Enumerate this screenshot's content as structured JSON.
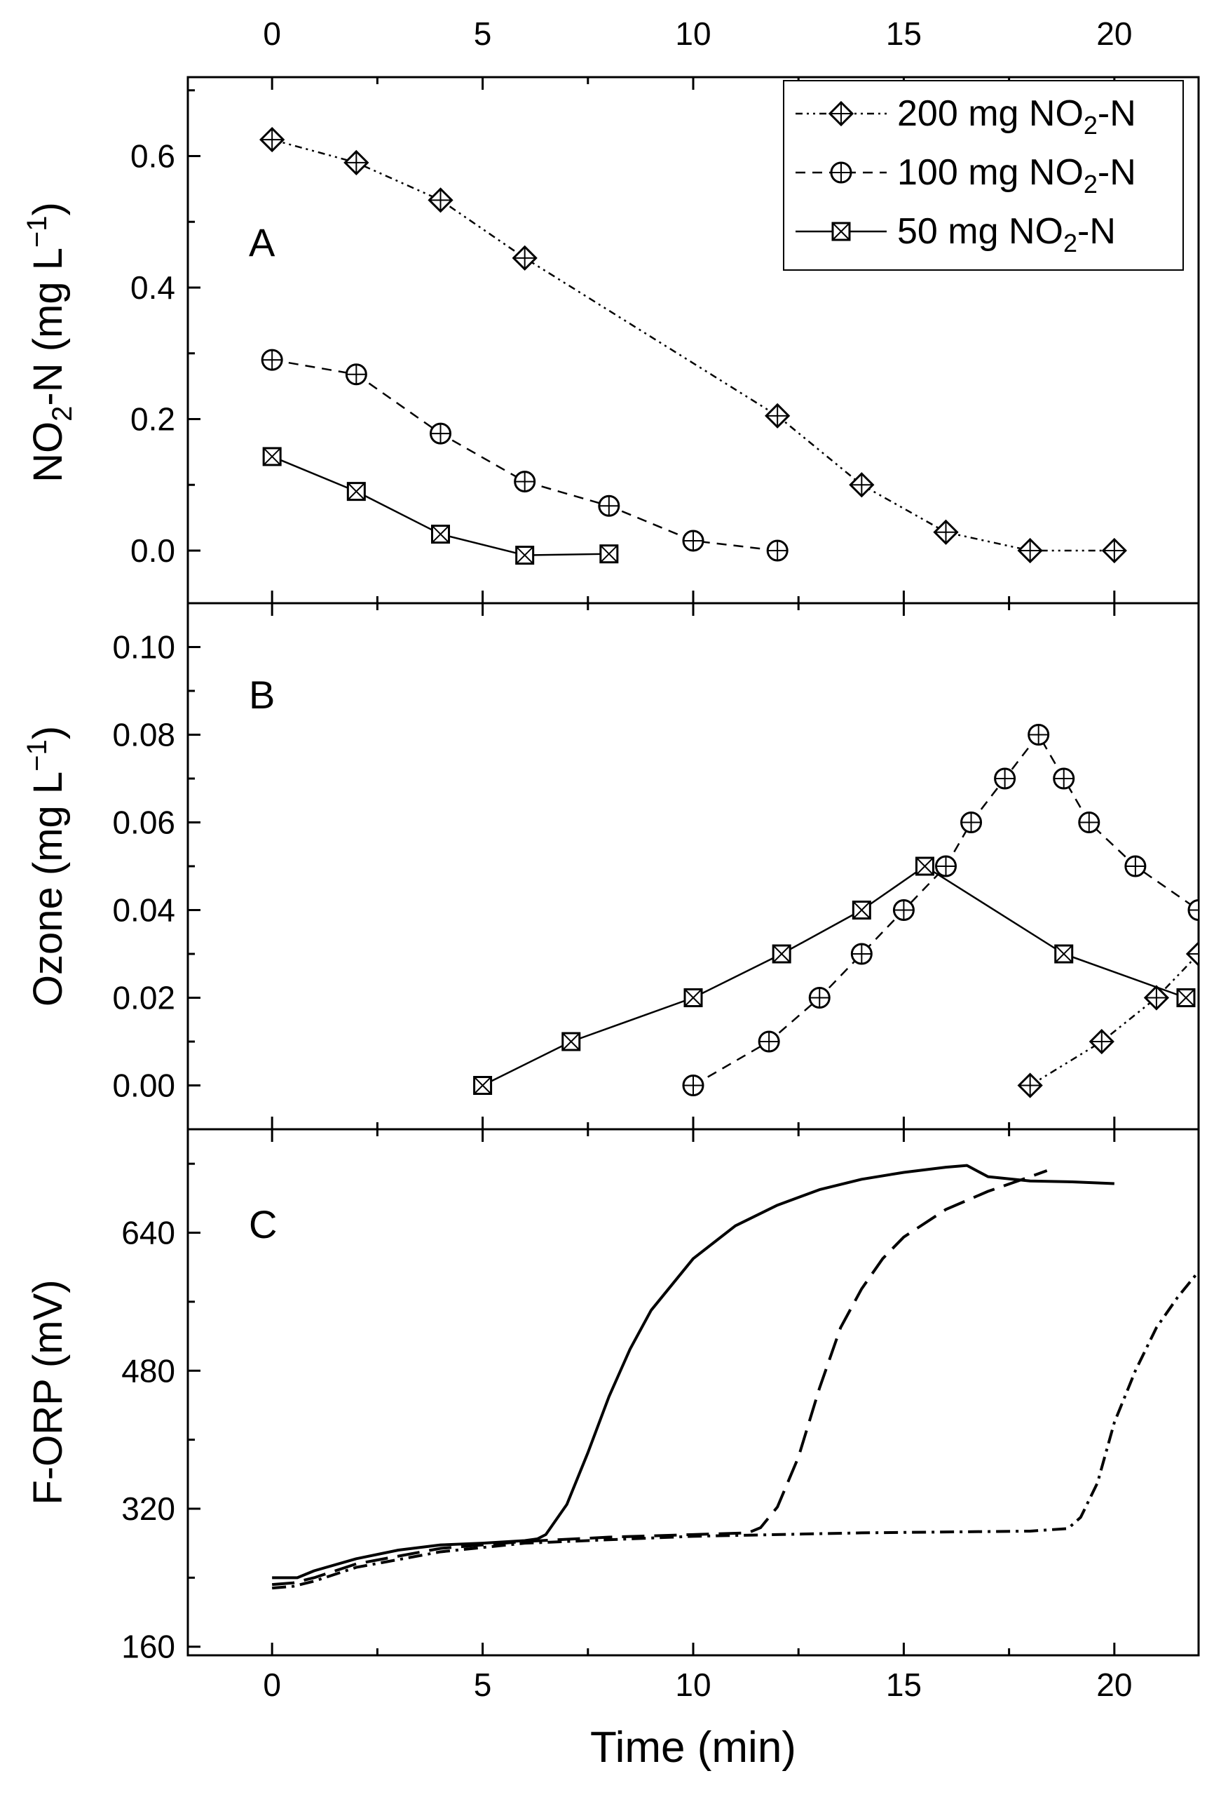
{
  "figure": {
    "xlabel": "Time (min)",
    "legend": [
      {
        "label": "200 mg NO₂-N",
        "text_main": "200 mg NO",
        "sub": "2",
        "text_tail": "-N",
        "marker": "diamond",
        "dash": "dashdotdot"
      },
      {
        "label": "100 mg NO₂-N",
        "text_main": "100 mg NO",
        "sub": "2",
        "text_tail": "-N",
        "marker": "oplus",
        "dash": "dashed"
      },
      {
        "label": "50 mg NO₂-N",
        "text_main": "50 mg NO",
        "sub": "2",
        "text_tail": "-N",
        "marker": "boxx",
        "dash": "solid"
      }
    ],
    "xticks": [
      0,
      5,
      10,
      15,
      20
    ]
  },
  "chart_data": [
    {
      "type": "line",
      "panel_label": "A",
      "ylabel": "NO₂-N (mg L⁻¹)",
      "ylabel_parts": {
        "a": "NO",
        "sub": "2",
        "b": "-N (mg L",
        "sup": "−1",
        "c": ")"
      },
      "xlim": [
        -2,
        22
      ],
      "ylim": [
        -0.08,
        0.72
      ],
      "yticks": [
        "0.0",
        "0.2",
        "0.4",
        "0.6"
      ],
      "ytick_values": [
        0,
        0.2,
        0.4,
        0.6
      ],
      "series": [
        {
          "name": "200 mg NO₂-N",
          "marker": "diamond",
          "dash": "dashdotdot",
          "x": [
            0,
            2,
            4,
            6,
            12,
            14,
            16,
            18,
            20
          ],
          "y": [
            0.625,
            0.59,
            0.533,
            0.445,
            0.205,
            0.1,
            0.028,
            0.0,
            0.0
          ]
        },
        {
          "name": "100 mg NO₂-N",
          "marker": "oplus",
          "dash": "dashed",
          "x": [
            0,
            2,
            4,
            6,
            8,
            10,
            12
          ],
          "y": [
            0.29,
            0.268,
            0.178,
            0.105,
            0.068,
            0.015,
            0.0
          ]
        },
        {
          "name": "50 mg NO₂-N",
          "marker": "boxx",
          "dash": "solid",
          "x": [
            0,
            2,
            4,
            6,
            8
          ],
          "y": [
            0.143,
            0.09,
            0.025,
            -0.007,
            -0.005
          ]
        }
      ]
    },
    {
      "type": "line",
      "panel_label": "B",
      "ylabel": "Ozone (mg L⁻¹)",
      "ylabel_parts": {
        "a": "Ozone (mg L",
        "sup": "−1",
        "c": ")"
      },
      "xlim": [
        -2,
        22
      ],
      "ylim": [
        -0.01,
        0.11
      ],
      "yticks": [
        "0.00",
        "0.02",
        "0.04",
        "0.06",
        "0.08",
        "0.10"
      ],
      "ytick_values": [
        0,
        0.02,
        0.04,
        0.06,
        0.08,
        0.1
      ],
      "series": [
        {
          "name": "200 mg NO₂-N",
          "marker": "diamond",
          "dash": "dashdotdot",
          "x": [
            18,
            19.7,
            21,
            22
          ],
          "y": [
            0.0,
            0.01,
            0.02,
            0.03
          ]
        },
        {
          "name": "100 mg NO₂-N",
          "marker": "oplus",
          "dash": "dashed",
          "x": [
            10,
            11.8,
            13,
            14,
            15,
            16,
            16.6,
            17.4,
            18.2,
            18.8,
            19.4,
            20.5,
            22
          ],
          "y": [
            0.0,
            0.01,
            0.02,
            0.03,
            0.04,
            0.05,
            0.06,
            0.07,
            0.08,
            0.07,
            0.06,
            0.05,
            0.04
          ]
        },
        {
          "name": "50 mg NO₂-N",
          "marker": "boxx",
          "dash": "solid",
          "x": [
            5,
            7.1,
            10,
            12.1,
            14,
            15.5,
            18.8,
            21.7
          ],
          "y": [
            0.0,
            0.01,
            0.02,
            0.03,
            0.04,
            0.05,
            0.03,
            0.02
          ]
        }
      ]
    },
    {
      "type": "line",
      "panel_label": "C",
      "ylabel": "F-ORP (mV)",
      "xlim": [
        -2,
        22
      ],
      "ylim": [
        150,
        760
      ],
      "yticks": [
        "160",
        "320",
        "480",
        "640"
      ],
      "ytick_values": [
        160,
        320,
        480,
        640
      ],
      "series": [
        {
          "name": "50 mg NO₂-N",
          "dash": "solid",
          "x": [
            0,
            0.6,
            1,
            2,
            3,
            4,
            5,
            6,
            6.3,
            6.5,
            7,
            7.5,
            8,
            8.5,
            9,
            10,
            11,
            12,
            13,
            14,
            15,
            16,
            16.5,
            17,
            18,
            19,
            20
          ],
          "y": [
            240,
            240,
            248,
            262,
            272,
            278,
            280,
            283,
            285,
            290,
            325,
            385,
            450,
            505,
            550,
            610,
            648,
            672,
            690,
            702,
            710,
            716,
            718,
            705,
            700,
            699,
            697
          ]
        },
        {
          "name": "100 mg NO₂-N",
          "dash": "dashed",
          "x": [
            0,
            0.5,
            1,
            2,
            4,
            6,
            8,
            10,
            11.3,
            11.6,
            12,
            12.5,
            13,
            13.5,
            14,
            14.5,
            15,
            16,
            17,
            18,
            18.4
          ],
          "y": [
            232,
            234,
            240,
            256,
            274,
            282,
            287,
            290,
            292,
            298,
            322,
            380,
            460,
            530,
            575,
            610,
            635,
            667,
            688,
            705,
            712
          ]
        },
        {
          "name": "200 mg NO₂-N",
          "dash": "dashdotdot",
          "x": [
            0,
            0.5,
            1,
            2,
            4,
            6,
            10,
            14,
            18,
            18.9,
            19.2,
            19.6,
            20,
            20.5,
            21,
            21.5,
            22
          ],
          "y": [
            228,
            230,
            236,
            252,
            270,
            280,
            288,
            292,
            294,
            297,
            310,
            350,
            420,
            480,
            530,
            565,
            595
          ]
        }
      ]
    }
  ]
}
